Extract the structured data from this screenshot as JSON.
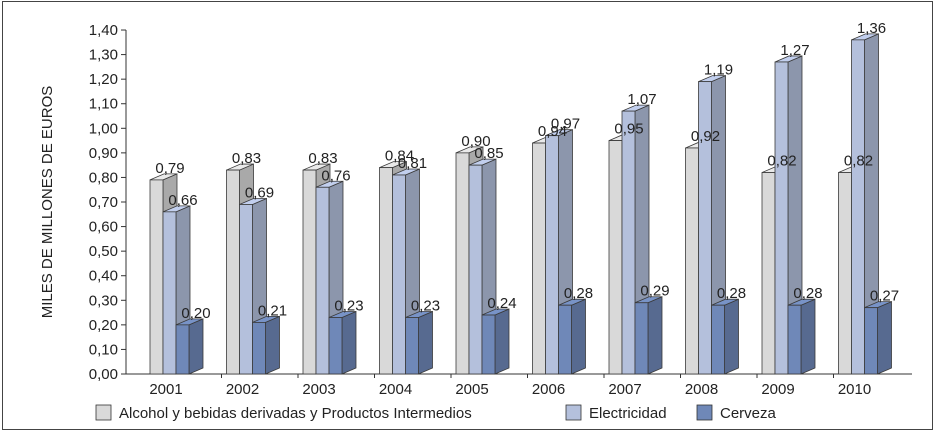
{
  "chart_data": {
    "type": "bar",
    "ylabel": "MILES DE MILLONES DE EUROS",
    "ylim": [
      0,
      1.4
    ],
    "yticks": [
      "0,00",
      "0,10",
      "0,20",
      "0,30",
      "0,40",
      "0,50",
      "0,60",
      "0,70",
      "0,80",
      "0,90",
      "1,00",
      "1,10",
      "1,20",
      "1,30",
      "1,40"
    ],
    "categories": [
      "2001",
      "2002",
      "2003",
      "2004",
      "2005",
      "2006",
      "2007",
      "2008",
      "2009",
      "2010"
    ],
    "grid": false,
    "legend_position": "bottom",
    "series": [
      {
        "name": "Alcohol y bebidas derivadas y Productos Intermedios",
        "color": "#d9d9d9",
        "values": [
          0.79,
          0.83,
          0.83,
          0.84,
          0.9,
          0.94,
          0.95,
          0.92,
          0.82,
          0.82
        ],
        "labels": [
          "0,79",
          "0,83",
          "0,83",
          "0,84",
          "0,90",
          "0,94",
          "0,95",
          "0,92",
          "0,82",
          "0,82"
        ]
      },
      {
        "name": "Electricidad",
        "color": "#b4c0dc",
        "values": [
          0.66,
          0.69,
          0.76,
          0.81,
          0.85,
          0.97,
          1.07,
          1.19,
          1.27,
          1.36
        ],
        "labels": [
          "0,66",
          "0,69",
          "0,76",
          "0,81",
          "0,85",
          "0,97",
          "1,07",
          "1,19",
          "1,27",
          "1,36"
        ]
      },
      {
        "name": "Cerveza",
        "color": "#6f88b8",
        "values": [
          0.2,
          0.21,
          0.23,
          0.23,
          0.24,
          0.28,
          0.29,
          0.28,
          0.28,
          0.27
        ],
        "labels": [
          "0,20",
          "0,21",
          "0,23",
          "0,23",
          "0,24",
          "0,28",
          "0,29",
          "0,28",
          "0,28",
          "0,27"
        ]
      }
    ]
  }
}
